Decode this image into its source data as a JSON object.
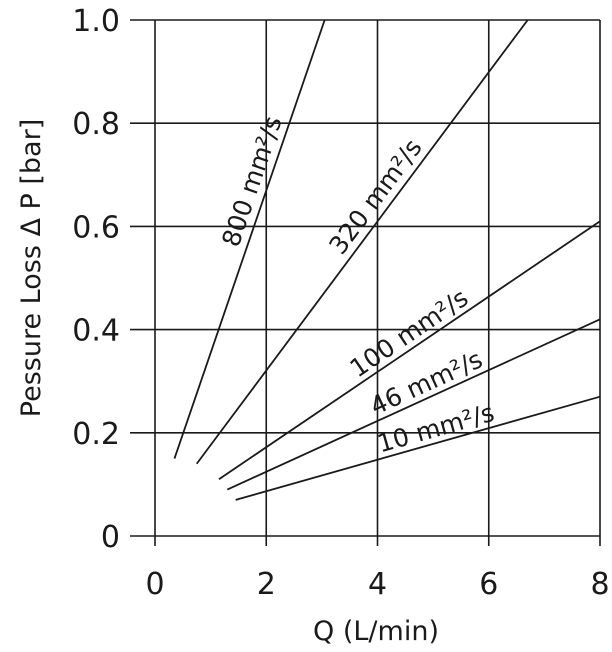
{
  "chart_data": {
    "type": "line",
    "title": "",
    "xlabel": "Q (L/min)",
    "ylabel": "Pessure Loss Δ P [bar]",
    "xlim": [
      0,
      8
    ],
    "ylim": [
      0,
      1.0
    ],
    "xticks": [
      "0",
      "2",
      "4",
      "6",
      "8"
    ],
    "yticks": [
      "0",
      "0.2",
      "0.4",
      "0.6",
      "0.8",
      "1.0"
    ],
    "grid": true,
    "series": [
      {
        "name": "800 mm²/s",
        "x": [
          0.35,
          3.05
        ],
        "y": [
          0.15,
          1.0
        ]
      },
      {
        "name": "320 mm²/s",
        "x": [
          0.75,
          6.7
        ],
        "y": [
          0.14,
          1.0
        ]
      },
      {
        "name": "100 mm²/s",
        "x": [
          1.15,
          8.0
        ],
        "y": [
          0.11,
          0.61
        ]
      },
      {
        "name": "46 mm²/s",
        "x": [
          1.3,
          8.0
        ],
        "y": [
          0.09,
          0.42
        ]
      },
      {
        "name": "10 mm²/s",
        "x": [
          1.45,
          8.0
        ],
        "y": [
          0.07,
          0.27
        ]
      }
    ]
  }
}
